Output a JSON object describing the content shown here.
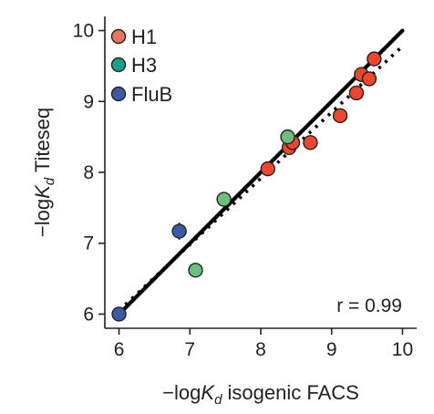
{
  "chart_data": {
    "type": "scatter",
    "xlabel_prefix": "−log",
    "xlabel_suffix": " isogenic FACS",
    "ylabel_prefix": "−log",
    "ylabel_suffix": " Titeseq",
    "k_symbol": "K",
    "k_subscript": "d",
    "xlim": [
      5.8,
      10.2
    ],
    "ylim": [
      5.8,
      10.2
    ],
    "xticks": [
      6,
      7,
      8,
      9,
      10
    ],
    "yticks": [
      6,
      7,
      8,
      9,
      10
    ],
    "annotation": "r = 0.99",
    "legend_position": "top-left",
    "grid": false,
    "series": [
      {
        "name": "H1",
        "color": "#f0452f",
        "legend_color": "#e8735f",
        "points": [
          {
            "x": 8.1,
            "y": 8.05
          },
          {
            "x": 8.4,
            "y": 8.35
          },
          {
            "x": 8.45,
            "y": 8.42
          },
          {
            "x": 8.7,
            "y": 8.42
          },
          {
            "x": 9.12,
            "y": 8.8
          },
          {
            "x": 9.35,
            "y": 9.12
          },
          {
            "x": 9.42,
            "y": 9.38
          },
          {
            "x": 9.53,
            "y": 9.32
          },
          {
            "x": 9.6,
            "y": 9.6
          }
        ]
      },
      {
        "name": "H3",
        "color": "#6bbf7c",
        "legend_color": "#17a08c",
        "points": [
          {
            "x": 7.08,
            "y": 6.62
          },
          {
            "x": 7.48,
            "y": 7.62
          },
          {
            "x": 8.38,
            "y": 8.5
          }
        ]
      },
      {
        "name": "FluB",
        "color": "#3a5aa6",
        "legend_color": "#3a5aa6",
        "points": [
          {
            "x": 6.0,
            "y": 6.0,
            "yerr": 0.03
          },
          {
            "x": 6.85,
            "y": 7.17,
            "yerr": 0.12
          }
        ]
      }
    ],
    "lines": [
      {
        "style": "solid",
        "from": [
          6,
          6
        ],
        "to": [
          10,
          10
        ]
      },
      {
        "style": "dotted",
        "from": [
          6,
          6.05
        ],
        "to": [
          10,
          9.78
        ]
      }
    ]
  }
}
